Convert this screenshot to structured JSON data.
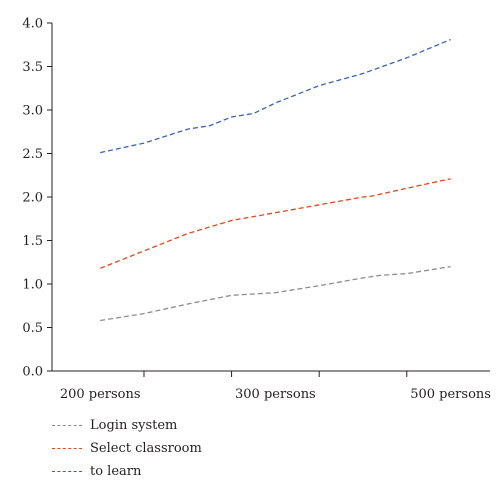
{
  "chart_data": {
    "type": "line",
    "title": "",
    "xlabel": "",
    "ylabel": "",
    "x": [
      1,
      2,
      3,
      4,
      5
    ],
    "xtick_labels": [
      {
        "pos": 1,
        "label": "200 persons"
      },
      {
        "pos": 3,
        "label": "300 persons"
      },
      {
        "pos": 5,
        "label": "500 persons"
      }
    ],
    "xlim": [
      0.45,
      5.45
    ],
    "ylim": [
      0.0,
      4.0
    ],
    "yticks": [
      0.0,
      0.5,
      1.0,
      1.5,
      2.0,
      2.5,
      3.0,
      3.5,
      4.0
    ],
    "grid": false,
    "legend_position": "bottom-left",
    "series": [
      {
        "name": "Login system",
        "color": "#8c8c8c",
        "x": [
          1,
          1.5,
          2,
          2.5,
          3,
          3.5,
          4,
          4.2,
          4.5,
          5
        ],
        "values": [
          0.58,
          0.66,
          0.77,
          0.87,
          0.9,
          0.98,
          1.07,
          1.1,
          1.12,
          1.2
        ]
      },
      {
        "name": "Select classroom",
        "color": "#e0481f",
        "x": [
          1,
          1.5,
          2,
          2.5,
          3,
          3.5,
          4,
          4.1,
          4.5,
          5
        ],
        "values": [
          1.18,
          1.38,
          1.58,
          1.73,
          1.82,
          1.91,
          2.0,
          2.01,
          2.1,
          2.21
        ]
      },
      {
        "name": "to learn",
        "color": "#3a63b8",
        "x": [
          1,
          1.5,
          2,
          2.25,
          2.5,
          2.75,
          3,
          3.5,
          4,
          4.5,
          5
        ],
        "values": [
          2.51,
          2.62,
          2.78,
          2.82,
          2.92,
          2.96,
          3.08,
          3.28,
          3.42,
          3.6,
          3.81
        ]
      }
    ]
  }
}
